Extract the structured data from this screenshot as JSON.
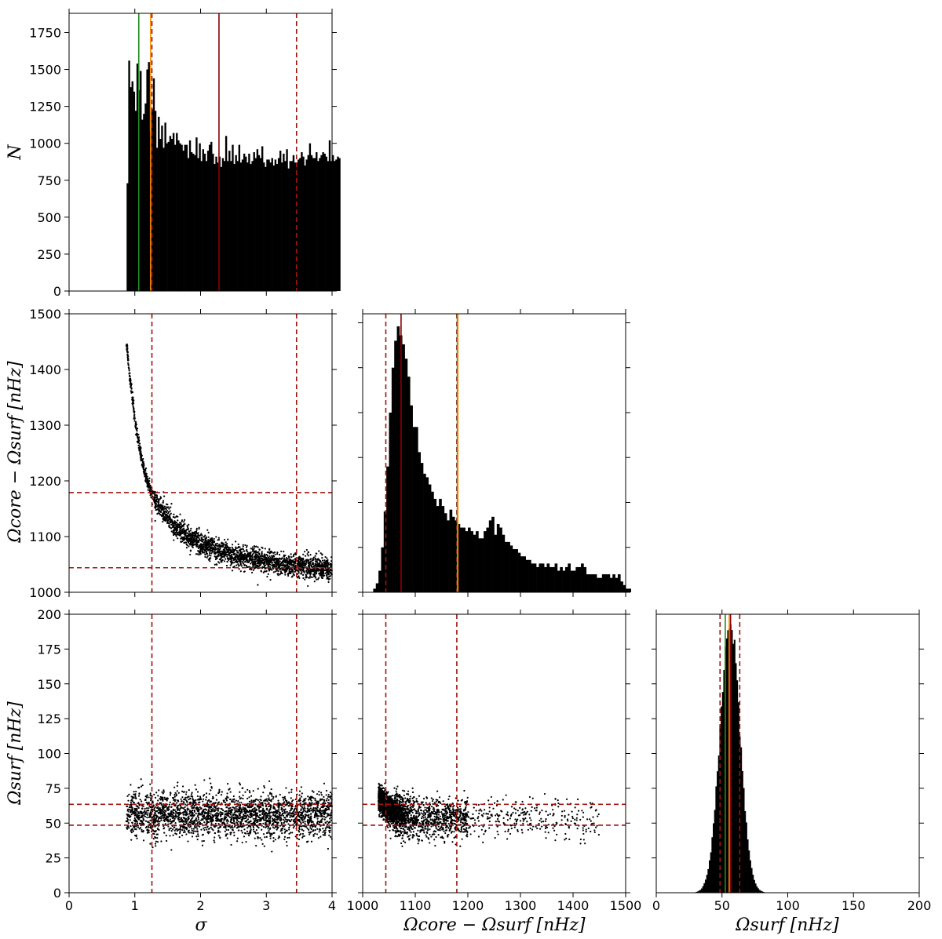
{
  "chart_data": [
    {
      "panel": "hist-sigma",
      "type": "bar",
      "xlim": [
        0,
        4
      ],
      "ylim": [
        0,
        1880
      ],
      "xticks": [
        "0",
        "1",
        "2",
        "3",
        "4"
      ],
      "yticks": [
        "0",
        "250",
        "500",
        "750",
        "1000",
        "1250",
        "1500",
        "1750"
      ],
      "ylabel": "N",
      "xlabel": "",
      "bin_start": 0.875,
      "bin_width": 0.025,
      "values": [
        730,
        1560,
        1380,
        1420,
        1350,
        1220,
        1540,
        1360,
        1490,
        1160,
        1200,
        1270,
        1500,
        1550,
        1080,
        1230,
        1440,
        1220,
        970,
        1180,
        1030,
        1120,
        970,
        1140,
        1000,
        1010,
        1050,
        1030,
        1070,
        990,
        1070,
        1020,
        1000,
        990,
        950,
        990,
        990,
        900,
        1020,
        940,
        930,
        920,
        1040,
        900,
        1000,
        880,
        960,
        930,
        880,
        950,
        990,
        1010,
        930,
        860,
        910,
        870,
        910,
        840,
        900,
        880,
        1050,
        880,
        950,
        880,
        990,
        860,
        920,
        880,
        990,
        870,
        890,
        930,
        910,
        870,
        930,
        860,
        880,
        940,
        900,
        960,
        920,
        900,
        980,
        870,
        840,
        890,
        890,
        870,
        900,
        850,
        890,
        860,
        900,
        950,
        870,
        930,
        880,
        960,
        830,
        880,
        880,
        920,
        870,
        870,
        890,
        900,
        940,
        910,
        850,
        890,
        920,
        1000,
        920,
        900,
        900,
        940,
        880,
        900,
        920,
        940,
        930,
        910,
        880,
        1020,
        880,
        920,
        880,
        890,
        910,
        900
      ],
      "lines": [
        {
          "x": 1.06,
          "color": "#228b22",
          "style": "solid"
        },
        {
          "x": 1.24,
          "color": "#ff8c00",
          "style": "solid"
        },
        {
          "x": 1.26,
          "color": "#a0140f",
          "style": "dashed"
        },
        {
          "x": 2.28,
          "color": "#8b0000",
          "style": "solid"
        },
        {
          "x": 3.46,
          "color": "#a0140f",
          "style": "dashed"
        }
      ]
    },
    {
      "panel": "scatter-sigma-core",
      "type": "scatter",
      "xlim": [
        0,
        4
      ],
      "ylim": [
        1000,
        1500
      ],
      "yticks": [
        "1000",
        "1100",
        "1200",
        "1300",
        "1400",
        "1500"
      ],
      "ylabel": "Ωcore − Ωsurf [nHz]",
      "xlabel": "",
      "x": [
        0.87,
        0.88,
        0.9,
        0.92,
        0.95,
        0.98,
        1.0,
        1.05,
        1.1,
        1.15,
        1.2,
        1.25,
        1.3,
        1.4,
        1.5,
        1.6,
        1.7,
        1.8,
        1.9,
        2.0,
        2.2,
        2.4,
        2.6,
        2.8,
        3.0,
        3.2,
        3.4,
        3.6,
        3.8,
        4.0
      ],
      "y": [
        1447,
        1440,
        1415,
        1390,
        1360,
        1330,
        1310,
        1275,
        1240,
        1215,
        1195,
        1180,
        1165,
        1150,
        1135,
        1120,
        1110,
        1100,
        1093,
        1088,
        1078,
        1070,
        1064,
        1059,
        1055,
        1051,
        1048,
        1045,
        1043,
        1041
      ],
      "hlines": [
        {
          "y": 1179,
          "color": "#a0140f",
          "style": "dashed"
        },
        {
          "y": 1044,
          "color": "#a0140f",
          "style": "dashed"
        }
      ],
      "vlines": [
        {
          "x": 1.26,
          "color": "#a0140f",
          "style": "dashed"
        },
        {
          "x": 3.46,
          "color": "#a0140f",
          "style": "dashed"
        }
      ]
    },
    {
      "panel": "hist-core",
      "type": "bar",
      "xlim": [
        1000,
        1500
      ],
      "bin_start": 1000,
      "bin_width": 5,
      "values": [
        0,
        0,
        0,
        0,
        2,
        5,
        12,
        25,
        45,
        70,
        100,
        125,
        140,
        148,
        143,
        138,
        130,
        120,
        104,
        92,
        92,
        78,
        72,
        66,
        64,
        60,
        56,
        52,
        48,
        52,
        48,
        44,
        40,
        46,
        42,
        40,
        38,
        36,
        36,
        34,
        36,
        34,
        32,
        34,
        30,
        30,
        34,
        36,
        40,
        42,
        32,
        38,
        36,
        32,
        28,
        28,
        26,
        24,
        24,
        22,
        20,
        20,
        18,
        18,
        16,
        16,
        14,
        16,
        16,
        14,
        16,
        14,
        14,
        16,
        12,
        14,
        12,
        14,
        16,
        12,
        12,
        14,
        14,
        16,
        14,
        10,
        10,
        10,
        10,
        8,
        8,
        10,
        10,
        10,
        8,
        10,
        8,
        10,
        6,
        4,
        2,
        2,
        0,
        0,
        0,
        0,
        0,
        0,
        0,
        0
      ],
      "lines": [
        {
          "x": 1044,
          "color": "#a0140f",
          "style": "dashed"
        },
        {
          "x": 1073,
          "color": "#8b0000",
          "style": "solid"
        },
        {
          "x": 1179,
          "color": "#a0140f",
          "style": "dashed"
        },
        {
          "x": 1180,
          "color": "#228b22",
          "style": "solid"
        },
        {
          "x": 1181,
          "color": "#ff8c00",
          "style": "solid"
        }
      ]
    },
    {
      "panel": "scatter-sigma-surf",
      "type": "scatter",
      "xlim": [
        0,
        4
      ],
      "ylim": [
        0,
        200
      ],
      "xticks": [
        "0",
        "1",
        "2",
        "3",
        "4"
      ],
      "yticks": [
        "0",
        "25",
        "50",
        "75",
        "100",
        "125",
        "150",
        "175",
        "200"
      ],
      "xlabel": "σ",
      "ylabel": "Ωsurf [nHz]",
      "x_range": [
        0.87,
        4.0
      ],
      "y_center": 56,
      "y_spread": 8,
      "hlines": [
        {
          "y": 63.5,
          "color": "#a0140f",
          "style": "dashed"
        },
        {
          "y": 48.5,
          "color": "#a0140f",
          "style": "dashed"
        }
      ],
      "vlines": [
        {
          "x": 1.26,
          "color": "#a0140f",
          "style": "dashed"
        },
        {
          "x": 3.46,
          "color": "#a0140f",
          "style": "dashed"
        }
      ]
    },
    {
      "panel": "scatter-core-surf",
      "type": "scatter",
      "xlim": [
        1000,
        1500
      ],
      "ylim": [
        0,
        200
      ],
      "xticks": [
        "1000",
        "1100",
        "1200",
        "1300",
        "1400",
        "1500"
      ],
      "xlabel": "Ωcore − Ωsurf [nHz]",
      "trend_x": [
        1010,
        1030,
        1050,
        1070,
        1100,
        1150,
        1200,
        1300,
        1400,
        1450
      ],
      "trend_y": [
        72,
        68,
        60,
        56,
        54,
        53,
        53,
        53,
        53,
        52
      ],
      "hlines": [
        {
          "y": 63.5,
          "color": "#a0140f",
          "style": "dashed"
        },
        {
          "y": 48.5,
          "color": "#a0140f",
          "style": "dashed"
        }
      ],
      "vlines": [
        {
          "x": 1044,
          "color": "#a0140f",
          "style": "dashed"
        },
        {
          "x": 1179,
          "color": "#a0140f",
          "style": "dashed"
        }
      ]
    },
    {
      "panel": "hist-surf",
      "type": "bar",
      "xlim": [
        0,
        200
      ],
      "xticks": [
        "0",
        "50",
        "100",
        "150",
        "200"
      ],
      "xlabel": "Ωsurf [nHz]",
      "gauss_center": 56,
      "gauss_sigma": 7.5,
      "peak_fraction": 0.97,
      "bin_width": 1,
      "lines": [
        {
          "x": 48.5,
          "color": "#a0140f",
          "style": "dashed"
        },
        {
          "x": 52.5,
          "color": "#228b22",
          "style": "solid"
        },
        {
          "x": 55.5,
          "color": "#ff8c00",
          "style": "solid"
        },
        {
          "x": 56.5,
          "color": "#8b0000",
          "style": "solid"
        },
        {
          "x": 63.5,
          "color": "#a0140f",
          "style": "dashed"
        }
      ]
    }
  ]
}
